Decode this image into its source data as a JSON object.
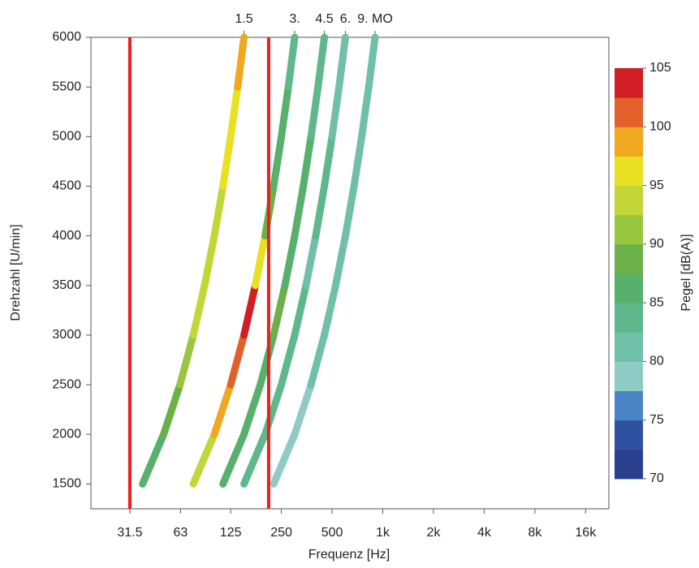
{
  "chart_data": {
    "type": "order-spectrogram",
    "xlabel": "Frequenz [Hz]",
    "ylabel": "Drehzahl [U/min]",
    "colorbar_label": "Pegel [dB(A)]",
    "log_x": true,
    "xlim": [
      18.5,
      22000
    ],
    "xticks": [
      31.5,
      63,
      125,
      250,
      500,
      {
        "value": 1000,
        "label": "1k"
      },
      {
        "value": 2000,
        "label": "2k"
      },
      {
        "value": 4000,
        "label": "4k"
      },
      {
        "value": 8000,
        "label": "8k"
      },
      {
        "value": 16000,
        "label": "16k"
      }
    ],
    "ylim": [
      1250,
      6000
    ],
    "yticks": [
      1500,
      2000,
      2500,
      3000,
      3500,
      4000,
      4500,
      5000,
      5500,
      6000
    ],
    "orders": [
      {
        "value": 1.5,
        "label": "1.5"
      },
      {
        "value": 3,
        "label": "3."
      },
      {
        "value": 4.5,
        "label": "4.5"
      },
      {
        "value": 6,
        "label": "6."
      },
      {
        "value": 9,
        "label": "9. MO"
      }
    ],
    "rpm": [
      1500,
      2000,
      2500,
      3000,
      3500,
      4000,
      4500,
      5000,
      5500,
      6000
    ],
    "series": [
      {
        "order": 1.5,
        "values": [
          85,
          88,
          90,
          92,
          93,
          94,
          95,
          96,
          97,
          98
        ]
      },
      {
        "order": 3,
        "values": [
          90,
          97,
          100,
          103,
          102,
          90,
          88,
          85,
          85,
          84
        ]
      },
      {
        "order": 4.5,
        "values": [
          85,
          85,
          86,
          88,
          87,
          86,
          88,
          85,
          84,
          83
        ]
      },
      {
        "order": 6,
        "values": [
          82,
          83,
          84,
          83,
          82,
          82,
          83,
          82,
          80,
          80
        ]
      },
      {
        "order": 9,
        "values": [
          78,
          79,
          80,
          80,
          80,
          80,
          82,
          80,
          80,
          80
        ]
      }
    ],
    "vlines": [
      31.5,
      210
    ],
    "vline_color": "#ee1c1c",
    "clim": [
      70,
      105
    ],
    "cticks": [
      70,
      75,
      80,
      85,
      90,
      95,
      100,
      105
    ],
    "colorscale": [
      "#2b3f8f",
      "#2f52a0",
      "#4a86c6",
      "#8fcac4",
      "#70c0a8",
      "#5eb88c",
      "#57b06c",
      "#6cb04a",
      "#98c63e",
      "#c2d638",
      "#e8e020",
      "#f0a820",
      "#e2602a",
      "#d01e24"
    ]
  }
}
